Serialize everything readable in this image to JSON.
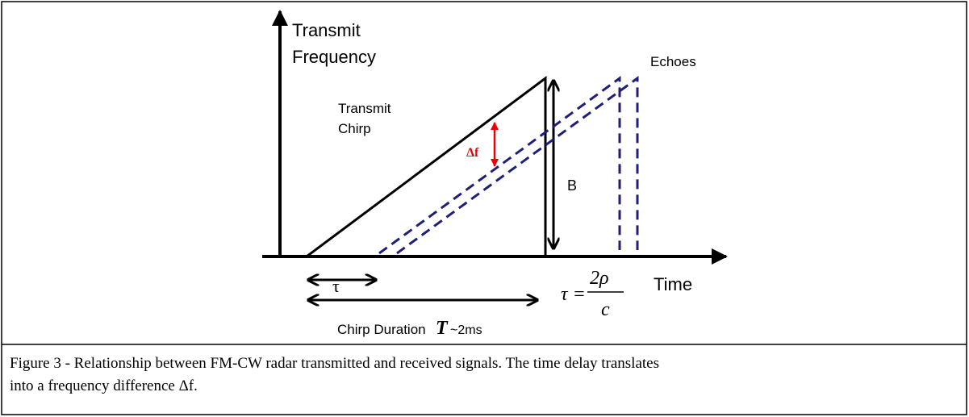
{
  "diagram": {
    "axis_label": [
      "Transmit",
      "Frequency"
    ],
    "echoes_label": "Echoes",
    "chirp_label": [
      "Transmit",
      "Chirp"
    ],
    "delta_f": "Δf",
    "bandwidth": "B",
    "tau": "τ",
    "time_label": "Time",
    "formula": {
      "lhs": "τ =",
      "numerator": "2ρ",
      "denominator": "c"
    },
    "duration": {
      "text": "Chirp Duration",
      "symbol": "T",
      "value": "~2ms"
    }
  },
  "caption": [
    "Figure 3 - Relationship between FM-CW radar transmitted and received signals. The time delay translates",
    "into a frequency difference Δf."
  ]
}
